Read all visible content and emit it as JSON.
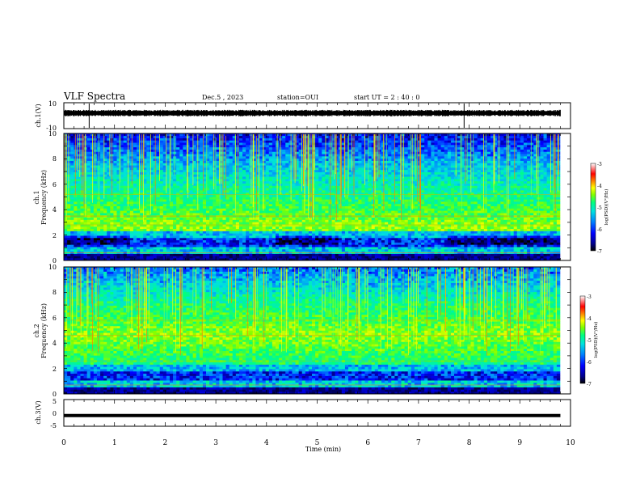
{
  "header": {
    "title": "VLF Spectra",
    "date": "Dec.5 , 2023",
    "station": "station=OUI",
    "start": "start UT =  2 : 40 : 0"
  },
  "colors": {
    "scale": [
      "#000000",
      "#000080",
      "#0000ff",
      "#0080ff",
      "#00e0e0",
      "#00ff80",
      "#80ff00",
      "#ffff00",
      "#ff8000",
      "#ff0000",
      "#ffffff"
    ],
    "trace": "#000000"
  },
  "chart_data": [
    {
      "type": "line",
      "ylabel": "ch.1(V)",
      "ylim": [
        -10,
        10
      ],
      "yticks": [
        "10",
        "-10"
      ],
      "xlim": [
        0,
        10
      ],
      "baseline": 2,
      "spike_times": [
        0.5,
        7.9
      ]
    },
    {
      "type": "heatmap",
      "ylabel_top": "ch.1",
      "ylabel": "Frequency (kHz)",
      "ylim": [
        0,
        10
      ],
      "yticks": [
        "0",
        "2",
        "4",
        "6",
        "8",
        "10"
      ],
      "xlim": [
        0,
        9.8
      ],
      "colorbar": {
        "label": "log(PSD)(V²/Hz)",
        "range": [
          -7,
          -3
        ],
        "ticks": [
          "-3",
          "-4",
          "-5",
          "-6",
          "-7"
        ]
      }
    },
    {
      "type": "heatmap",
      "ylabel_top": "ch.2",
      "ylabel": "Frequency (kHz)",
      "ylim": [
        0,
        10
      ],
      "yticks": [
        "0",
        "2",
        "4",
        "6",
        "8",
        "10"
      ],
      "xlim": [
        0,
        9.8
      ],
      "colorbar": {
        "label": "log(PSD)(V²/Hz)",
        "range": [
          -7,
          -3
        ],
        "ticks": [
          "-3",
          "-4",
          "-5",
          "-6",
          "-7"
        ]
      }
    },
    {
      "type": "line",
      "ylabel": "ch.3(V)",
      "ylim": [
        -5,
        5
      ],
      "yticks": [
        "5",
        "0",
        "-5"
      ],
      "xlim": [
        0,
        10
      ],
      "baseline": -1
    }
  ],
  "xaxis": {
    "label": "Time (min)",
    "ticks": [
      "0",
      "1",
      "2",
      "3",
      "4",
      "5",
      "6",
      "7",
      "8",
      "9",
      "10"
    ]
  }
}
